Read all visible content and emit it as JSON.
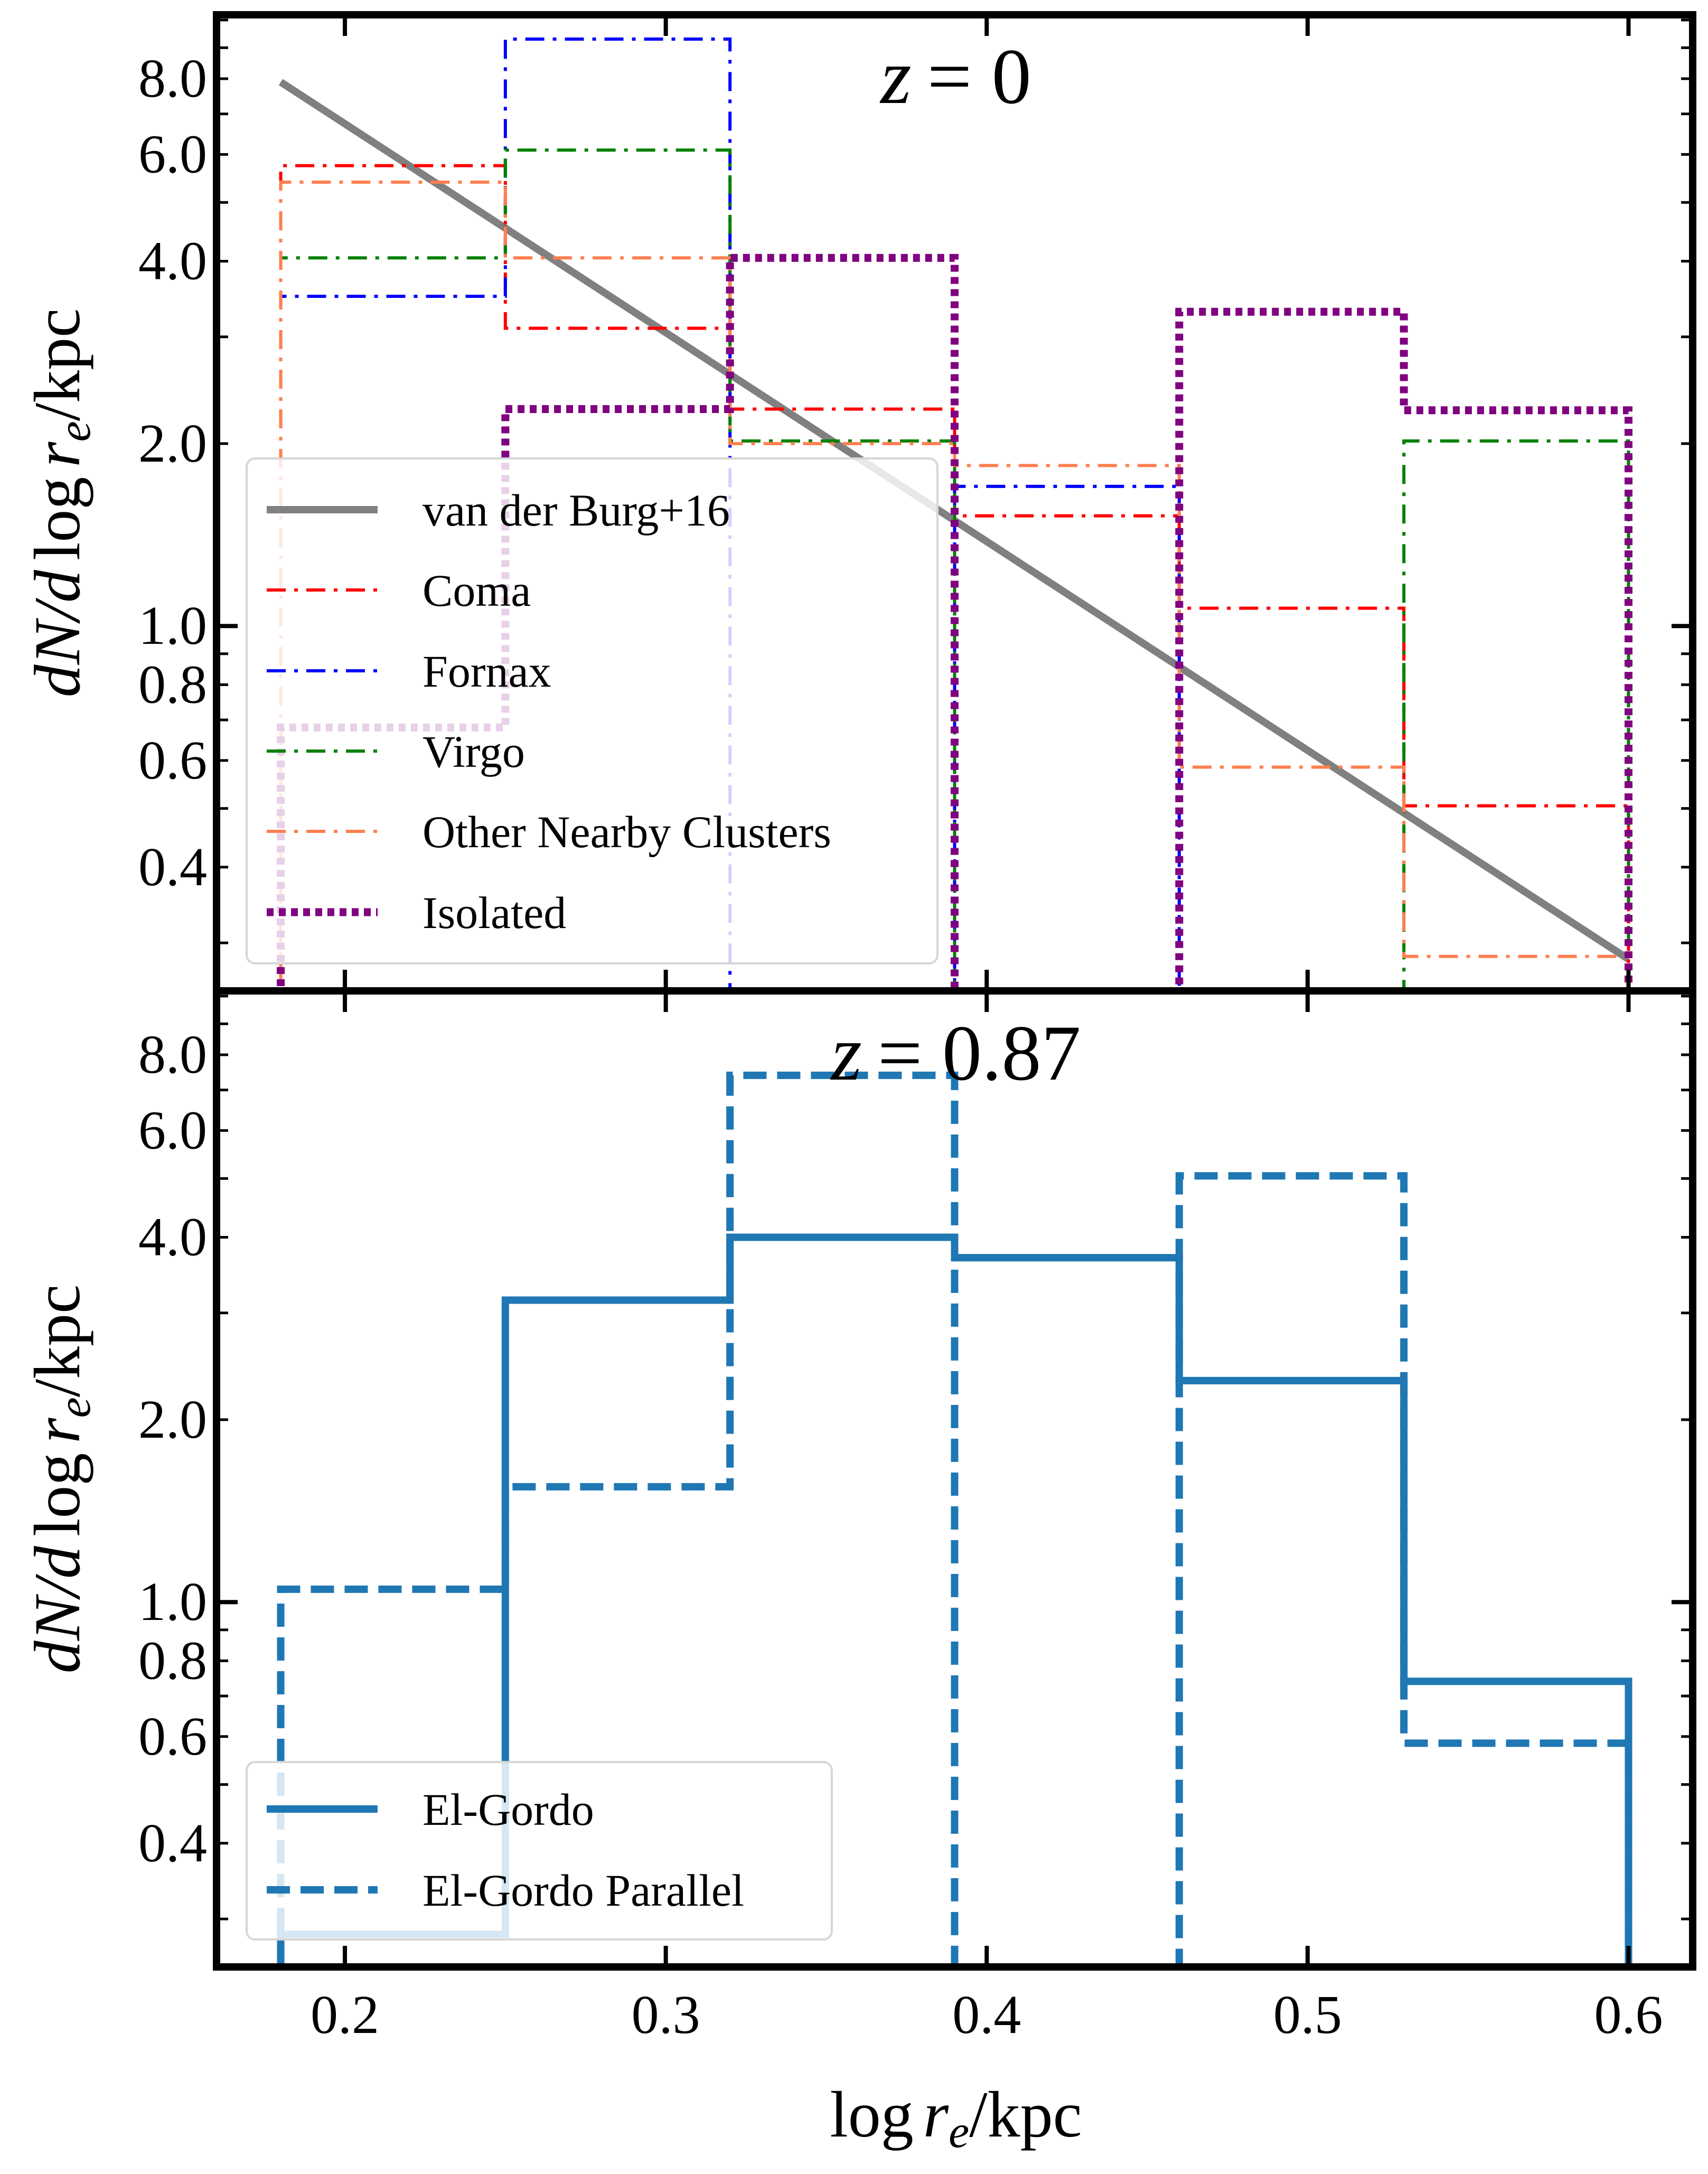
{
  "chart_data": [
    {
      "type": "step-histogram",
      "panel": "top",
      "title": "z = 0",
      "title_var": "z",
      "title_value": "= 0",
      "ylabel": "dN/d log r_e/kpc",
      "ylabel_parts": [
        "dN/d",
        "log",
        "r",
        "e",
        "/kpc"
      ],
      "xlabel": "",
      "xlim": [
        0.16,
        0.62
      ],
      "ylim": [
        0.25,
        10.2
      ],
      "yscale": "log",
      "yticks": [
        0.4,
        0.6,
        0.8,
        1.0,
        2.0,
        4.0,
        6.0,
        8.0
      ],
      "ytick_labels": [
        "0.4",
        "0.6",
        "0.8",
        "1.0",
        "2.0",
        "4.0",
        "6.0",
        "8.0"
      ],
      "bin_edges": [
        0.18,
        0.25,
        0.32,
        0.39,
        0.46,
        0.53,
        0.6
      ],
      "series": [
        {
          "name": "Coma",
          "color": "#ff0000",
          "style": "dashdot",
          "values": [
            5.75,
            3.1,
            2.28,
            1.52,
            1.07,
            0.505
          ]
        },
        {
          "name": "Fornax",
          "color": "#0000ff",
          "style": "dashdot",
          "values": [
            3.5,
            9.3,
            0.0,
            1.7,
            0.0,
            0.0
          ]
        },
        {
          "name": "Virgo",
          "color": "#008000",
          "style": "dashdot",
          "values": [
            4.05,
            6.1,
            2.02,
            0.0,
            0.0,
            2.02
          ]
        },
        {
          "name": "Other Nearby Clusters",
          "color": "#ff7f50",
          "style": "dashdot",
          "values": [
            5.4,
            4.05,
            2.0,
            1.84,
            0.585,
            0.285
          ]
        },
        {
          "name": "Isolated",
          "color": "#800080",
          "style": "dotted",
          "values": [
            0.68,
            2.28,
            4.05,
            0.0,
            3.3,
            2.27
          ]
        }
      ],
      "reference_line": {
        "name": "van der Burg+16",
        "color": "#808080",
        "x": [
          0.18,
          0.6
        ],
        "y": [
          7.9,
          0.282
        ]
      },
      "legend_position": "lower-left",
      "legend": [
        "van der Burg+16",
        "Coma",
        "Fornax",
        "Virgo",
        "Other Nearby Clusters",
        "Isolated"
      ]
    },
    {
      "type": "step-histogram",
      "panel": "bottom",
      "title": "z = 0.87",
      "title_var": "z",
      "title_value": "= 0.87",
      "ylabel": "dN/d log r_e/kpc",
      "ylabel_parts": [
        "dN/d",
        "log",
        "r",
        "e",
        "/kpc"
      ],
      "xlabel": "log r_e/kpc",
      "xlabel_parts": [
        "log",
        "r",
        "e",
        "/kpc"
      ],
      "xlim": [
        0.16,
        0.62
      ],
      "ylim": [
        0.25,
        10.2
      ],
      "yscale": "log",
      "xticks": [
        0.2,
        0.3,
        0.4,
        0.5,
        0.6
      ],
      "xtick_labels": [
        "0.2",
        "0.3",
        "0.4",
        "0.5",
        "0.6"
      ],
      "yticks": [
        0.4,
        0.6,
        0.8,
        1.0,
        2.0,
        4.0,
        6.0,
        8.0
      ],
      "ytick_labels": [
        "0.4",
        "0.6",
        "0.8",
        "1.0",
        "2.0",
        "4.0",
        "6.0",
        "8.0"
      ],
      "bin_edges": [
        0.18,
        0.25,
        0.32,
        0.39,
        0.46,
        0.53,
        0.6
      ],
      "series": [
        {
          "name": "El-Gordo",
          "color": "#1f77b4",
          "style": "solid",
          "values": [
            0.283,
            3.15,
            4.0,
            3.7,
            2.32,
            0.74
          ]
        },
        {
          "name": "El-Gordo Parallel",
          "color": "#1f77b4",
          "style": "dashed",
          "values": [
            1.05,
            1.55,
            7.4,
            0.0,
            5.05,
            0.585
          ]
        }
      ],
      "legend_position": "lower-left",
      "legend": [
        "El-Gordo",
        "El-Gordo Parallel"
      ]
    }
  ]
}
